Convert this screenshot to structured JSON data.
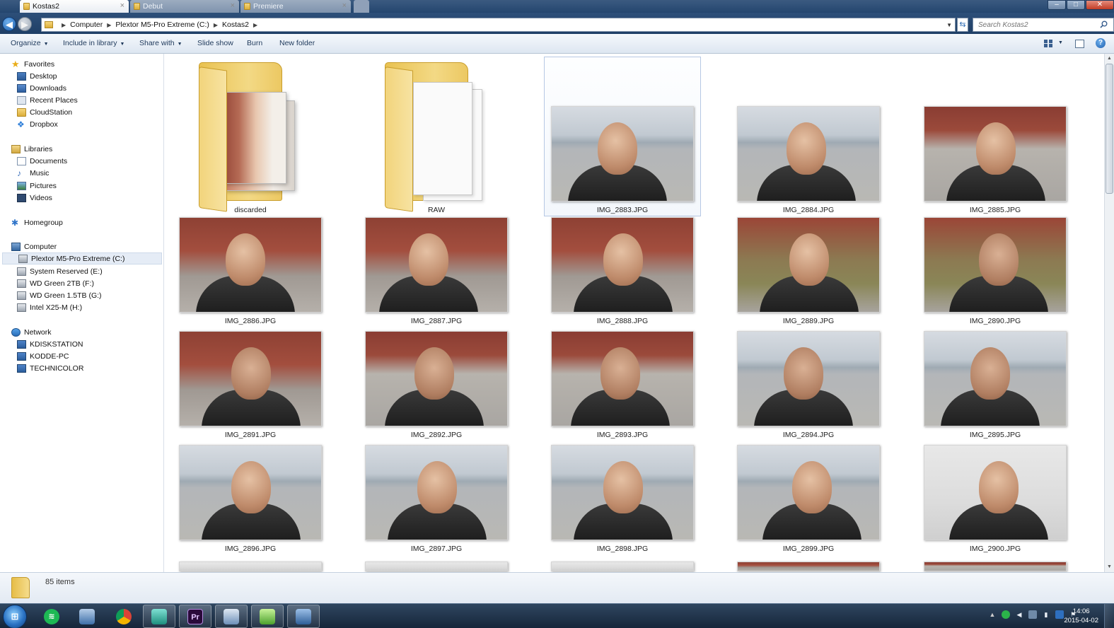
{
  "window": {
    "tabs": [
      {
        "label": "Kostas2",
        "active": true
      },
      {
        "label": "Debut",
        "active": false
      },
      {
        "label": "Premiere",
        "active": false
      }
    ],
    "controls": {
      "minimize": "–",
      "maximize": "□",
      "close": "✕"
    }
  },
  "address": {
    "breadcrumbs": [
      "Computer",
      "Plextor M5-Pro Extreme (C:)",
      "Kostas2"
    ],
    "search_placeholder": "Search Kostas2"
  },
  "toolbar": {
    "organize": "Organize",
    "include_in_library": "Include in library",
    "share_with": "Share with",
    "slide_show": "Slide show",
    "burn": "Burn",
    "new_folder": "New folder"
  },
  "nav": {
    "favorites": {
      "label": "Favorites",
      "items": [
        "Desktop",
        "Downloads",
        "Recent Places",
        "CloudStation",
        "Dropbox"
      ]
    },
    "libraries": {
      "label": "Libraries",
      "items": [
        "Documents",
        "Music",
        "Pictures",
        "Videos"
      ]
    },
    "homegroup": "Homegroup",
    "computer": {
      "label": "Computer",
      "items": [
        "Plextor M5-Pro Extreme (C:)",
        "System Reserved (E:)",
        "WD Green 2TB (F:)",
        "WD Green 1.5TB (G:)",
        "Intel X25-M (H:)"
      ],
      "selected": "Plextor M5-Pro Extreme (C:)"
    },
    "network": {
      "label": "Network",
      "items": [
        "KDISKSTATION",
        "KODDE-PC",
        "TECHNICOLOR"
      ]
    }
  },
  "content": {
    "folders": [
      {
        "name": "discarded"
      },
      {
        "name": "RAW"
      }
    ],
    "files": [
      {
        "name": "IMG_2883.JPG",
        "selected": true
      },
      {
        "name": "IMG_2884.JPG"
      },
      {
        "name": "IMG_2885.JPG"
      },
      {
        "name": "IMG_2886.JPG"
      },
      {
        "name": "IMG_2887.JPG"
      },
      {
        "name": "IMG_2888.JPG"
      },
      {
        "name": "IMG_2889.JPG"
      },
      {
        "name": "IMG_2890.JPG"
      },
      {
        "name": "IMG_2891.JPG"
      },
      {
        "name": "IMG_2892.JPG"
      },
      {
        "name": "IMG_2893.JPG"
      },
      {
        "name": "IMG_2894.JPG"
      },
      {
        "name": "IMG_2895.JPG"
      },
      {
        "name": "IMG_2896.JPG"
      },
      {
        "name": "IMG_2897.JPG"
      },
      {
        "name": "IMG_2898.JPG"
      },
      {
        "name": "IMG_2899.JPG"
      },
      {
        "name": "IMG_2900.JPG"
      }
    ]
  },
  "details": {
    "item_count": "85 items"
  },
  "taskbar": {
    "apps": [
      "Spotify",
      "Explorer",
      "Chrome",
      "Launcher",
      "Premiere Pro",
      "Media",
      "Utility",
      "Video"
    ],
    "premiere_label": "Pr",
    "clock_time": "14:06",
    "clock_date": "2015-04-02"
  },
  "colors": {
    "accent": "#2b6ab3",
    "titlebar": "#24466f",
    "taskbar": "#16263a",
    "folder": "#f3d985"
  }
}
